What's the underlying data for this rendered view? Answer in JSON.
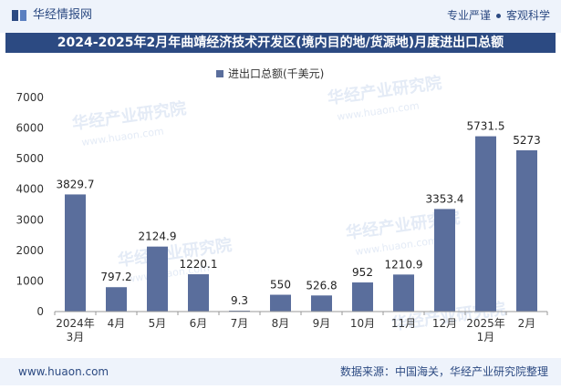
{
  "header": {
    "brand_name": "华经情报网",
    "tag1": "专业严谨",
    "tag2": "客观科学"
  },
  "watermark": {
    "cn": "华经产业研究院",
    "en": "www.huaon.com"
  },
  "footer": {
    "url": "www.huaon.com",
    "source": "数据来源：中国海关，华经产业研究院整理"
  },
  "colors": {
    "bar": "#5a6e9c",
    "title_bg": "#2c4a82",
    "strip_bg": "#eef3fb"
  },
  "chart_data": {
    "type": "bar",
    "title": "2024-2025年2月年曲靖经济技术开发区(境内目的地/货源地)月度进出口总额",
    "legend": "进出口总额(千美元)",
    "legend_position": "top-center",
    "categories": [
      "2024年\n3月",
      "4月",
      "5月",
      "6月",
      "7月",
      "8月",
      "9月",
      "10月",
      "11月",
      "12月",
      "2025年\n1月",
      "2月"
    ],
    "series": [
      {
        "name": "进出口总额(千美元)",
        "values": [
          3829.7,
          797.2,
          2124.9,
          1220.1,
          9.3,
          550,
          526.8,
          952,
          1210.9,
          3353.4,
          5731.5,
          5273
        ],
        "labels": [
          "3829.7",
          "797.2",
          "2124.9",
          "1220.1",
          "9.3",
          "550",
          "526.8",
          "952",
          "1210.9",
          "3353.4",
          "5731.5",
          "5273"
        ]
      }
    ],
    "ylim": [
      0,
      7000
    ],
    "yticks": [
      0,
      1000,
      2000,
      3000,
      4000,
      5000,
      6000,
      7000
    ],
    "grid": false
  }
}
